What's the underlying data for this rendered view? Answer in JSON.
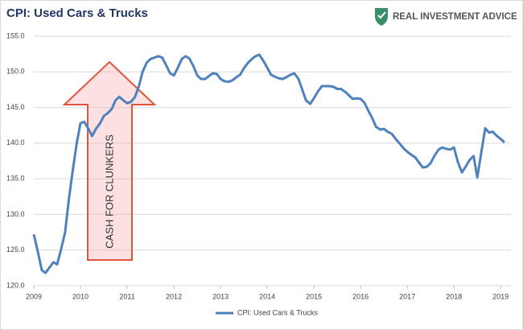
{
  "chart_data": {
    "type": "line",
    "title": "CPI: Used Cars & Trucks",
    "brand": "REAL INVESTMENT ADVICE",
    "annotation": "CASH FOR CLUNKERS",
    "x": [
      2009,
      2009.08,
      2009.17,
      2009.25,
      2009.33,
      2009.42,
      2009.5,
      2009.58,
      2009.67,
      2009.75,
      2009.83,
      2009.92,
      2010,
      2010.08,
      2010.17,
      2010.25,
      2010.33,
      2010.42,
      2010.5,
      2010.58,
      2010.67,
      2010.75,
      2010.83,
      2010.92,
      2011,
      2011.08,
      2011.17,
      2011.25,
      2011.33,
      2011.42,
      2011.5,
      2011.58,
      2011.67,
      2011.75,
      2011.83,
      2011.92,
      2012,
      2012.08,
      2012.17,
      2012.25,
      2012.33,
      2012.42,
      2012.5,
      2012.58,
      2012.67,
      2012.75,
      2012.83,
      2012.92,
      2013,
      2013.08,
      2013.17,
      2013.25,
      2013.33,
      2013.42,
      2013.5,
      2013.58,
      2013.67,
      2013.75,
      2013.83,
      2013.92,
      2014,
      2014.08,
      2014.17,
      2014.25,
      2014.33,
      2014.42,
      2014.5,
      2014.58,
      2014.67,
      2014.75,
      2014.83,
      2014.92,
      2015,
      2015.08,
      2015.17,
      2015.25,
      2015.33,
      2015.42,
      2015.5,
      2015.58,
      2015.67,
      2015.75,
      2015.83,
      2015.92,
      2016,
      2016.08,
      2016.17,
      2016.25,
      2016.33,
      2016.42,
      2016.5,
      2016.58,
      2016.67,
      2016.75,
      2016.83,
      2016.92,
      2017,
      2017.08,
      2017.17,
      2017.25,
      2017.33,
      2017.42,
      2017.5,
      2017.58,
      2017.67,
      2017.75,
      2017.83,
      2017.92,
      2018,
      2018.08,
      2018.17,
      2018.25,
      2018.33,
      2018.42,
      2018.5,
      2018.58,
      2018.67,
      2018.75,
      2018.83,
      2018.92,
      2019,
      2019.08
    ],
    "series": [
      {
        "name": "CPI: Used Cars & Trucks",
        "color": "#4f81bd",
        "values": [
          127.2,
          125,
          122.2,
          121.8,
          122.5,
          123.3,
          123,
          125,
          127.5,
          132,
          136,
          140,
          142.8,
          143,
          142,
          141,
          142,
          142.8,
          143.8,
          144.2,
          144.8,
          146,
          146.5,
          146,
          145.6,
          145.8,
          146.5,
          148,
          150,
          151.3,
          151.8,
          152,
          152.2,
          152,
          151,
          149.8,
          149.5,
          150.5,
          151.8,
          152.2,
          151.9,
          150.8,
          149.5,
          149,
          149,
          149.4,
          149.8,
          149.7,
          149,
          148.7,
          148.6,
          148.8,
          149.2,
          149.6,
          150.5,
          151.2,
          151.8,
          152.2,
          152.4,
          151.5,
          150.6,
          149.6,
          149.3,
          149.1,
          149,
          149.3,
          149.6,
          149.8,
          149,
          147.5,
          146,
          145.5,
          146.3,
          147.2,
          148,
          148,
          148,
          147.9,
          147.6,
          147.6,
          147.2,
          146.7,
          146.2,
          146.3,
          146.2,
          145.7,
          144.5,
          143.5,
          142.3,
          141.9,
          142,
          141.6,
          141.3,
          140.6,
          140,
          139.3,
          138.8,
          138.4,
          138,
          137.3,
          136.6,
          136.7,
          137.2,
          138.2,
          139.1,
          139.4,
          139.2,
          139.1,
          139.4,
          137.4,
          135.9,
          136.7,
          137.6,
          138.2,
          135.2,
          138.5,
          142.1,
          141.5,
          141.6,
          141,
          140.6,
          140.1
        ]
      }
    ],
    "xlim": [
      2009,
      2019.22
    ],
    "xticks": [
      2009,
      2010,
      2011,
      2012,
      2013,
      2014,
      2015,
      2016,
      2017,
      2018,
      2019
    ],
    "ylim": [
      120,
      155
    ],
    "yticks": [
      {
        "value": 120,
        "label": "120.0"
      },
      {
        "value": 125,
        "label": "125.0"
      },
      {
        "value": 130,
        "label": "130.0"
      },
      {
        "value": 135,
        "label": "135.0"
      },
      {
        "value": 140,
        "label": "140.0"
      },
      {
        "value": 145,
        "label": "145.0"
      },
      {
        "value": 150,
        "label": "150.0"
      },
      {
        "value": 155,
        "label": "155.0"
      }
    ],
    "grid": true,
    "legend": "bottom"
  }
}
